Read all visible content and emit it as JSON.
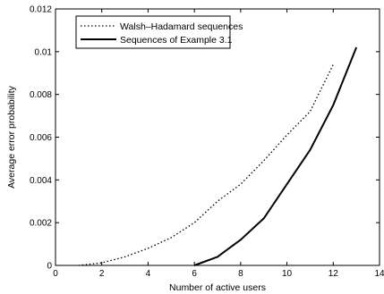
{
  "chart_data": {
    "type": "line",
    "title": "",
    "xlabel": "Number of active users",
    "ylabel": "Average error probability",
    "xlim": [
      0,
      14
    ],
    "ylim": [
      0,
      0.012
    ],
    "xticks": [
      "0",
      "2",
      "4",
      "6",
      "8",
      "10",
      "12",
      "14"
    ],
    "yticks": [
      "0",
      "0.002",
      "0.004",
      "0.006",
      "0.008",
      "0.01",
      "0.012"
    ],
    "grid": false,
    "legend_position": "top-left",
    "series": [
      {
        "name": "Walsh–Hadamard sequences",
        "style": "dotted",
        "color": "#000000",
        "x": [
          1,
          2,
          3,
          4,
          5,
          6,
          7,
          8,
          9,
          10,
          11,
          12
        ],
        "y": [
          0.0,
          0.00012,
          0.0004,
          0.0008,
          0.0013,
          0.002,
          0.003,
          0.0038,
          0.0049,
          0.0061,
          0.0072,
          0.0094
        ]
      },
      {
        "name": "Sequences of Example 3.1",
        "style": "solid",
        "color": "#000000",
        "x": [
          6,
          7,
          8,
          9,
          10,
          11,
          12,
          13
        ],
        "y": [
          0.0,
          0.0004,
          0.0012,
          0.0022,
          0.0038,
          0.0054,
          0.0075,
          0.0102
        ]
      }
    ]
  }
}
